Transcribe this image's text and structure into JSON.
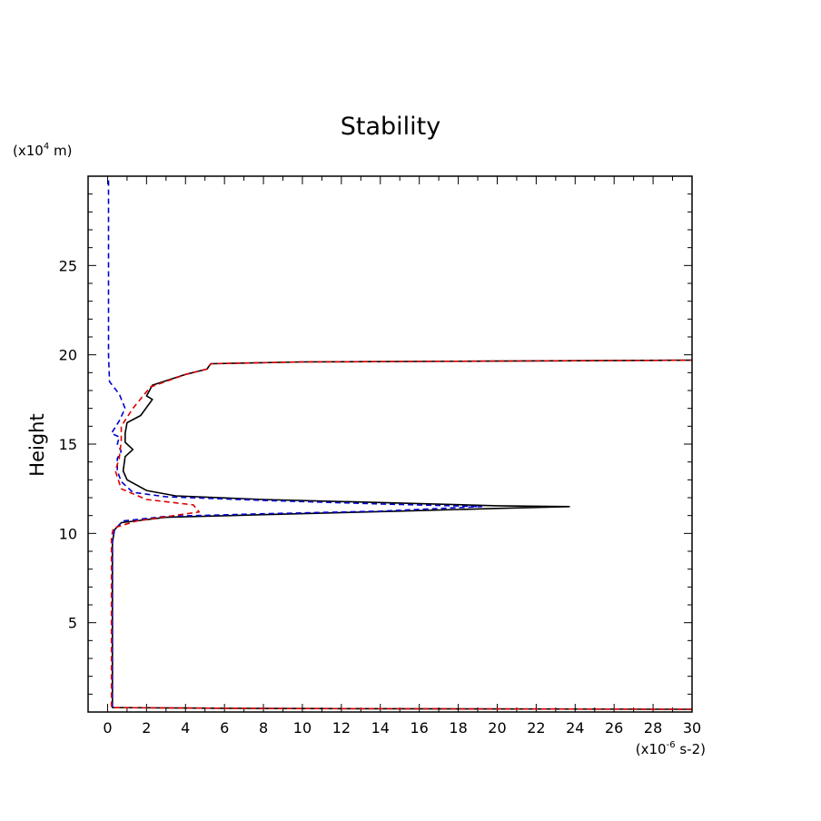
{
  "chart_data": {
    "type": "line",
    "title": "Stability",
    "xlabel": "",
    "ylabel": "Height",
    "x_unit_label": {
      "prefix": "(x10",
      "exp": "-6",
      "suffix": " s-2)"
    },
    "y_unit_label": {
      "prefix": "(x10",
      "exp": "4",
      "suffix": " m)"
    },
    "xlim": [
      -1,
      30
    ],
    "ylim": [
      0,
      30
    ],
    "x_ticks": [
      0,
      2,
      4,
      6,
      8,
      10,
      12,
      14,
      16,
      18,
      20,
      22,
      24,
      26,
      28,
      30
    ],
    "y_ticks": [
      5,
      10,
      15,
      20,
      25
    ],
    "grid": false,
    "series": [
      {
        "color": "#000000",
        "dash": "solid",
        "points": [
          [
            30,
            0.15
          ],
          [
            8,
            0.2
          ],
          [
            0.25,
            0.25
          ],
          [
            0.25,
            5
          ],
          [
            0.25,
            9.5
          ],
          [
            0.35,
            10.2
          ],
          [
            0.7,
            10.6
          ],
          [
            3,
            10.9
          ],
          [
            8,
            11.05
          ],
          [
            15,
            11.25
          ],
          [
            20,
            11.4
          ],
          [
            23.7,
            11.5
          ],
          [
            20,
            11.55
          ],
          [
            15,
            11.7
          ],
          [
            8,
            11.9
          ],
          [
            3.5,
            12.1
          ],
          [
            2,
            12.4
          ],
          [
            1,
            13
          ],
          [
            0.8,
            13.5
          ],
          [
            0.9,
            14.3
          ],
          [
            1.3,
            14.7
          ],
          [
            0.9,
            15.1
          ],
          [
            0.9,
            15.6
          ],
          [
            1,
            16.2
          ],
          [
            1.7,
            16.6
          ],
          [
            2.3,
            17.5
          ],
          [
            2,
            17.7
          ],
          [
            2.3,
            18.3
          ],
          [
            4,
            18.9
          ],
          [
            5.1,
            19.2
          ],
          [
            5.3,
            19.5
          ],
          [
            10,
            19.6
          ],
          [
            20,
            19.65
          ],
          [
            30,
            19.7
          ]
        ]
      },
      {
        "color": "#0000cc",
        "dash": "dashed",
        "points": [
          [
            0.25,
            0.25
          ],
          [
            0.25,
            5
          ],
          [
            0.25,
            9.5
          ],
          [
            0.35,
            10.2
          ],
          [
            0.8,
            10.7
          ],
          [
            3,
            10.95
          ],
          [
            8,
            11.1
          ],
          [
            14,
            11.25
          ],
          [
            19.2,
            11.5
          ],
          [
            14,
            11.65
          ],
          [
            8,
            11.85
          ],
          [
            3,
            12.05
          ],
          [
            1.3,
            12.3
          ],
          [
            0.7,
            12.9
          ],
          [
            0.5,
            13.5
          ],
          [
            0.5,
            14.2
          ],
          [
            0.7,
            14.6
          ],
          [
            0.5,
            15
          ],
          [
            0.6,
            15.4
          ],
          [
            0.2,
            15.6
          ],
          [
            0.6,
            16.3
          ],
          [
            0.9,
            17
          ],
          [
            0.6,
            17.8
          ],
          [
            0.1,
            18.5
          ],
          [
            0.05,
            20
          ],
          [
            0.05,
            25
          ],
          [
            0.05,
            30
          ]
        ]
      },
      {
        "color": "#dd0000",
        "dash": "dashed",
        "points": [
          [
            30,
            0.15
          ],
          [
            8,
            0.2
          ],
          [
            0.2,
            0.25
          ],
          [
            0.2,
            5
          ],
          [
            0.2,
            9.8
          ],
          [
            0.3,
            10.3
          ],
          [
            1.5,
            10.7
          ],
          [
            4.7,
            11.2
          ],
          [
            4.4,
            11.6
          ],
          [
            2,
            11.9
          ],
          [
            0.7,
            12.5
          ],
          [
            0.4,
            13.5
          ],
          [
            0.6,
            14.2
          ],
          [
            0.7,
            15.2
          ],
          [
            0.7,
            16
          ],
          [
            1.3,
            17
          ],
          [
            2.2,
            18.2
          ],
          [
            4,
            18.9
          ],
          [
            5.1,
            19.2
          ],
          [
            5.3,
            19.5
          ],
          [
            10,
            19.6
          ],
          [
            20,
            19.65
          ],
          [
            30,
            19.7
          ]
        ]
      }
    ]
  }
}
